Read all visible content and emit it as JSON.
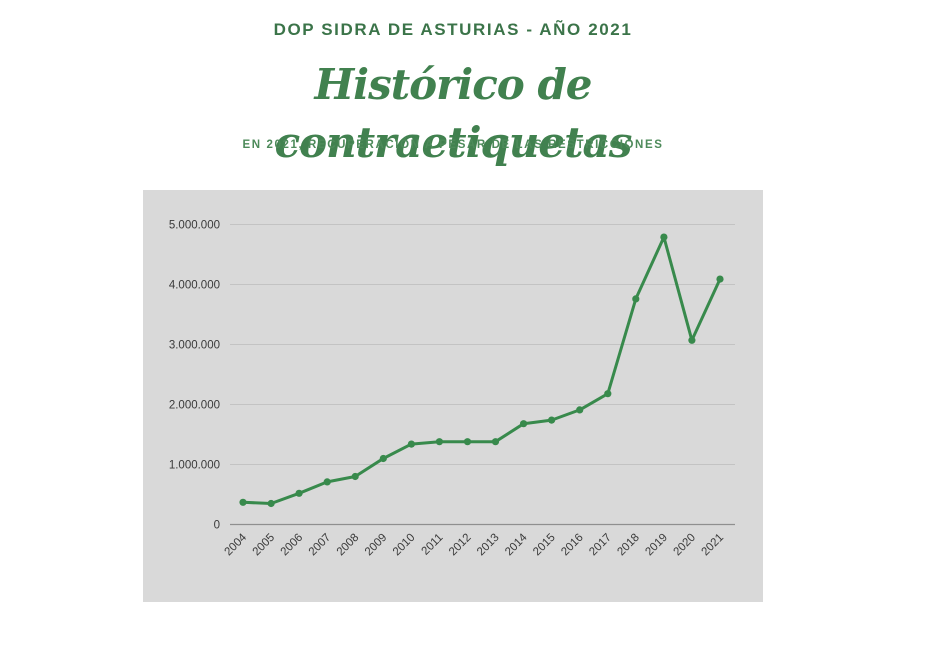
{
  "header": {
    "kicker": "DOP SIDRA DE ASTURIAS - AÑO 2021",
    "title": "Histórico de contraetiquetas",
    "subtitle": "EN 2021, RECUPERACIÓN A PESAR DE LAS RESTRICCIONES"
  },
  "colors": {
    "kicker_green": "#3b7449",
    "title_green": "#41814f",
    "subtitle_green": "#4d8a5a",
    "line_green": "#388a4c",
    "panel_background": "#d9d9d9",
    "gridline": "#c3c3c3",
    "zero_axis": "#8f8f8f",
    "tick_text": "#3a3a3a"
  },
  "chart_data": {
    "type": "line",
    "title": "Histórico de contraetiquetas",
    "xlabel": "",
    "ylabel": "",
    "categories": [
      "2004",
      "2005",
      "2006",
      "2007",
      "2008",
      "2009",
      "2010",
      "2011",
      "2012",
      "2013",
      "2014",
      "2015",
      "2016",
      "2017",
      "2018",
      "2019",
      "2020",
      "2021"
    ],
    "series": [
      {
        "name": "Contraetiquetas",
        "values": [
          370000,
          350000,
          520000,
          710000,
          800000,
          1100000,
          1340000,
          1380000,
          1380000,
          1380000,
          1680000,
          1740000,
          1910000,
          2180000,
          3760000,
          4790000,
          3070000,
          4090000
        ]
      }
    ],
    "ylim": [
      0,
      5000000
    ],
    "yticks": [
      0,
      1000000,
      2000000,
      3000000,
      4000000,
      5000000
    ],
    "ytick_labels": [
      "0",
      "1.000.000",
      "2.000.000",
      "3.000.000",
      "4.000.000",
      "5.000.000"
    ],
    "grid": true,
    "legend": "none",
    "marker": "circle"
  }
}
